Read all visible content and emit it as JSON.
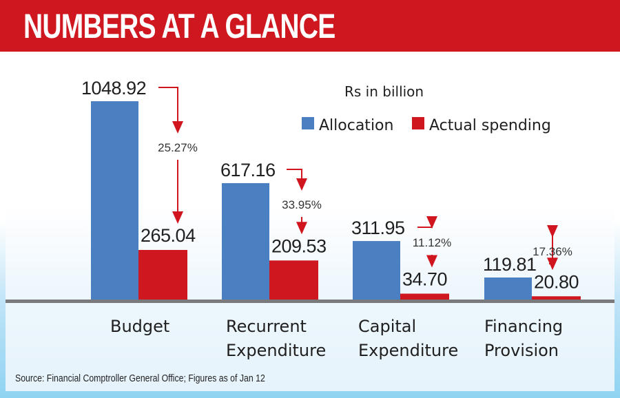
{
  "header": {
    "title": "NUMBERS AT A GLANCE"
  },
  "colors": {
    "header_red": "#cf1720",
    "allocation": "#4a7fc1",
    "actual": "#cf1720",
    "axis": "#7a7a7c",
    "arrow": "#d0151f"
  },
  "chart_data": {
    "type": "bar",
    "title": "NUMBERS AT A GLANCE",
    "unit_label": "Rs in billion",
    "categories": [
      [
        "Budget"
      ],
      [
        "Recurrent",
        "Expenditure"
      ],
      [
        "Capital",
        "Expenditure"
      ],
      [
        "Financing",
        "Provision"
      ]
    ],
    "series": [
      {
        "name": "Allocation",
        "values": [
          1048.92,
          617.16,
          311.95,
          119.81
        ],
        "labels": [
          "1048.92",
          "617.16",
          "311.95",
          "119.81"
        ]
      },
      {
        "name": "Actual spending",
        "values": [
          265.04,
          209.53,
          34.7,
          20.8
        ],
        "labels": [
          "265.04",
          "209.53",
          "34.70",
          "20.80"
        ]
      }
    ],
    "percentages": [
      "25.27%",
      "33.95%",
      "11.12%",
      "17.36%"
    ],
    "legend": [
      "Allocation",
      "Actual spending"
    ],
    "legend_position": "top-right",
    "ylim": [
      0,
      1048.92
    ],
    "grid": false
  },
  "footer": {
    "source": "Source: Financial Comptroller General Office; Figures as of Jan 12"
  }
}
